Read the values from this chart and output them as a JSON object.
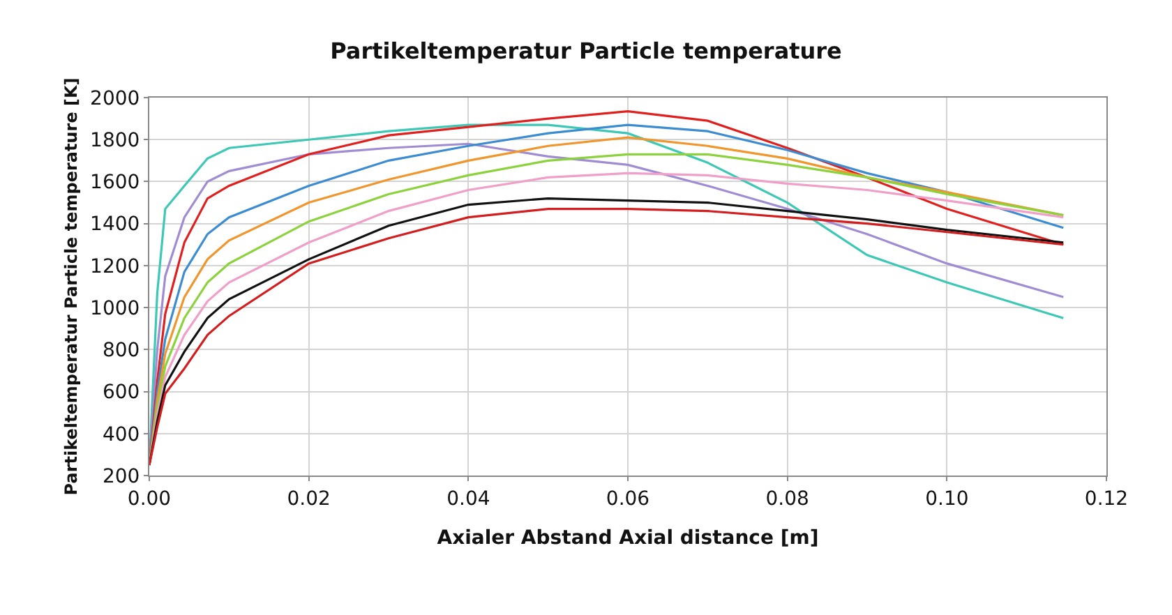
{
  "chart_data": {
    "type": "line",
    "title": "Partikeltemperatur Particle temperature",
    "xlabel": "Axialer Abstand Axial distance [m]",
    "ylabel": "Partikeltemperatur Particle temperature [K]",
    "x": [
      0,
      0.001,
      0.002,
      0.0044,
      0.0073,
      0.01,
      0.02,
      0.03,
      0.04,
      0.05,
      0.06,
      0.07,
      0.08,
      0.09,
      0.1,
      0.1146
    ],
    "series": [
      {
        "color": "#3cc8b4",
        "values": [
          250,
          1070,
          1470,
          1580,
          1710,
          1760,
          1800,
          1840,
          1870,
          1870,
          1830,
          1690,
          1500,
          1250,
          1120,
          950
        ]
      },
      {
        "color": "#a08cd2",
        "values": [
          250,
          800,
          1150,
          1430,
          1600,
          1650,
          1730,
          1760,
          1780,
          1720,
          1680,
          1580,
          1470,
          1350,
          1210,
          1050
        ]
      },
      {
        "color": "#e0201e",
        "values": [
          250,
          650,
          970,
          1310,
          1520,
          1580,
          1730,
          1820,
          1860,
          1900,
          1935,
          1890,
          1760,
          1620,
          1470,
          1300
        ]
      },
      {
        "color": "#3c8cd2",
        "values": [
          250,
          600,
          850,
          1170,
          1350,
          1430,
          1580,
          1700,
          1770,
          1830,
          1870,
          1840,
          1750,
          1640,
          1550,
          1380
        ]
      },
      {
        "color": "#f0962d",
        "values": [
          250,
          560,
          780,
          1050,
          1230,
          1320,
          1500,
          1610,
          1700,
          1770,
          1810,
          1770,
          1710,
          1620,
          1550,
          1440
        ]
      },
      {
        "color": "#8cd23c",
        "values": [
          250,
          520,
          720,
          950,
          1120,
          1210,
          1410,
          1540,
          1630,
          1700,
          1730,
          1730,
          1680,
          1620,
          1540,
          1440
        ]
      },
      {
        "color": "#f0a0c8",
        "values": [
          250,
          490,
          670,
          870,
          1030,
          1120,
          1310,
          1460,
          1560,
          1620,
          1640,
          1630,
          1590,
          1560,
          1510,
          1430
        ]
      },
      {
        "color": "#111111",
        "values": [
          250,
          460,
          630,
          790,
          950,
          1040,
          1230,
          1390,
          1490,
          1520,
          1510,
          1500,
          1460,
          1420,
          1370,
          1310
        ]
      },
      {
        "color": "#d21e1e",
        "values": [
          250,
          430,
          590,
          710,
          870,
          960,
          1210,
          1330,
          1430,
          1470,
          1470,
          1460,
          1430,
          1400,
          1360,
          1300
        ]
      }
    ],
    "xlim": [
      0,
      0.12
    ],
    "xticks": [
      {
        "value": 0,
        "label": "0.00"
      },
      {
        "value": 0.02,
        "label": "0.02"
      },
      {
        "value": 0.04,
        "label": "0.04"
      },
      {
        "value": 0.06,
        "label": "0.06"
      },
      {
        "value": 0.08,
        "label": "0.08"
      },
      {
        "value": 0.1,
        "label": "0.10"
      },
      {
        "value": 0.12,
        "label": "0.12"
      }
    ],
    "ylim": [
      200,
      2000
    ],
    "yticks": [
      200,
      400,
      600,
      800,
      1000,
      1200,
      1400,
      1600,
      1800,
      2000
    ],
    "grid": true,
    "marker": "none",
    "line_style": "solid"
  }
}
